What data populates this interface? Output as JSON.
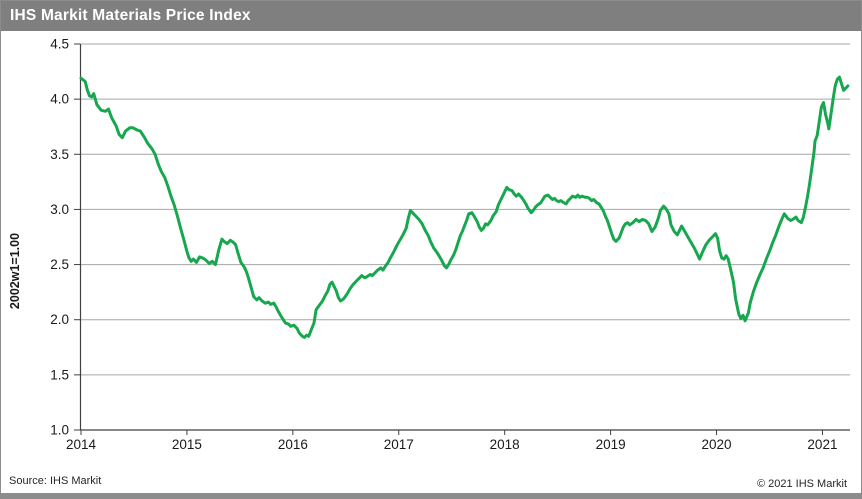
{
  "title_bar": {
    "title": "IHS Markit Materials Price Index"
  },
  "footer": {
    "source": "Source: IHS Markit",
    "copyright": "© 2021  IHS Markit"
  },
  "colors": {
    "title_bar_bg": "#7f7f7f",
    "title_text": "#ffffff",
    "line": "#17a74f",
    "gridline": "#a6a6a6",
    "axis": "#404040",
    "tick_label": "#1a1a1a",
    "border": "#8c8c8c",
    "background": "#ffffff"
  },
  "chart_data": {
    "type": "line",
    "title": "IHS Markit Materials Price Index",
    "xlabel": "",
    "ylabel": "2002w1=1.00",
    "x_ticks": [
      2014,
      2015,
      2016,
      2017,
      2018,
      2019,
      2020,
      2021
    ],
    "y_ticks": [
      1.0,
      1.5,
      2.0,
      2.5,
      3.0,
      3.5,
      4.0,
      4.5
    ],
    "xlim": [
      2014,
      2021.26
    ],
    "ylim": [
      1.0,
      4.5
    ],
    "grid": "horizontal",
    "legend": "none",
    "series": [
      {
        "name": "Materials Price Index",
        "color": "#17a74f",
        "points": [
          [
            2014.0,
            4.19
          ],
          [
            2014.04,
            4.16
          ],
          [
            2014.06,
            4.08
          ],
          [
            2014.08,
            4.03
          ],
          [
            2014.1,
            4.02
          ],
          [
            2014.12,
            4.05
          ],
          [
            2014.15,
            3.95
          ],
          [
            2014.19,
            3.9
          ],
          [
            2014.23,
            3.89
          ],
          [
            2014.26,
            3.91
          ],
          [
            2014.29,
            3.83
          ],
          [
            2014.33,
            3.76
          ],
          [
            2014.36,
            3.68
          ],
          [
            2014.39,
            3.65
          ],
          [
            2014.42,
            3.71
          ],
          [
            2014.46,
            3.74
          ],
          [
            2014.49,
            3.74
          ],
          [
            2014.53,
            3.72
          ],
          [
            2014.56,
            3.71
          ],
          [
            2014.6,
            3.65
          ],
          [
            2014.63,
            3.6
          ],
          [
            2014.67,
            3.55
          ],
          [
            2014.7,
            3.5
          ],
          [
            2014.73,
            3.41
          ],
          [
            2014.76,
            3.34
          ],
          [
            2014.79,
            3.29
          ],
          [
            2014.82,
            3.21
          ],
          [
            2014.85,
            3.12
          ],
          [
            2014.88,
            3.04
          ],
          [
            2014.91,
            2.94
          ],
          [
            2014.94,
            2.83
          ],
          [
            2014.97,
            2.73
          ],
          [
            2015.0,
            2.62
          ],
          [
            2015.02,
            2.56
          ],
          [
            2015.04,
            2.53
          ],
          [
            2015.06,
            2.55
          ],
          [
            2015.09,
            2.52
          ],
          [
            2015.12,
            2.57
          ],
          [
            2015.15,
            2.56
          ],
          [
            2015.18,
            2.54
          ],
          [
            2015.21,
            2.51
          ],
          [
            2015.24,
            2.53
          ],
          [
            2015.27,
            2.5
          ],
          [
            2015.3,
            2.63
          ],
          [
            2015.33,
            2.73
          ],
          [
            2015.35,
            2.71
          ],
          [
            2015.38,
            2.69
          ],
          [
            2015.41,
            2.72
          ],
          [
            2015.44,
            2.7
          ],
          [
            2015.46,
            2.68
          ],
          [
            2015.48,
            2.61
          ],
          [
            2015.51,
            2.52
          ],
          [
            2015.54,
            2.48
          ],
          [
            2015.56,
            2.44
          ],
          [
            2015.58,
            2.38
          ],
          [
            2015.61,
            2.28
          ],
          [
            2015.63,
            2.21
          ],
          [
            2015.66,
            2.18
          ],
          [
            2015.68,
            2.2
          ],
          [
            2015.71,
            2.17
          ],
          [
            2015.74,
            2.15
          ],
          [
            2015.77,
            2.16
          ],
          [
            2015.79,
            2.14
          ],
          [
            2015.82,
            2.15
          ],
          [
            2015.84,
            2.12
          ],
          [
            2015.86,
            2.08
          ],
          [
            2015.89,
            2.03
          ],
          [
            2015.91,
            2.0
          ],
          [
            2015.93,
            1.97
          ],
          [
            2015.96,
            1.96
          ],
          [
            2015.98,
            1.94
          ],
          [
            2016.01,
            1.95
          ],
          [
            2016.04,
            1.92
          ],
          [
            2016.06,
            1.88
          ],
          [
            2016.09,
            1.85
          ],
          [
            2016.11,
            1.84
          ],
          [
            2016.13,
            1.86
          ],
          [
            2016.15,
            1.85
          ],
          [
            2016.17,
            1.9
          ],
          [
            2016.2,
            1.97
          ],
          [
            2016.22,
            2.09
          ],
          [
            2016.25,
            2.13
          ],
          [
            2016.28,
            2.17
          ],
          [
            2016.3,
            2.21
          ],
          [
            2016.33,
            2.26
          ],
          [
            2016.35,
            2.32
          ],
          [
            2016.37,
            2.34
          ],
          [
            2016.39,
            2.3
          ],
          [
            2016.41,
            2.26
          ],
          [
            2016.43,
            2.2
          ],
          [
            2016.45,
            2.17
          ],
          [
            2016.48,
            2.19
          ],
          [
            2016.51,
            2.23
          ],
          [
            2016.54,
            2.28
          ],
          [
            2016.57,
            2.32
          ],
          [
            2016.6,
            2.35
          ],
          [
            2016.63,
            2.38
          ],
          [
            2016.65,
            2.4
          ],
          [
            2016.68,
            2.38
          ],
          [
            2016.7,
            2.39
          ],
          [
            2016.73,
            2.41
          ],
          [
            2016.75,
            2.4
          ],
          [
            2016.78,
            2.43
          ],
          [
            2016.8,
            2.45
          ],
          [
            2016.83,
            2.47
          ],
          [
            2016.85,
            2.45
          ],
          [
            2016.87,
            2.48
          ],
          [
            2016.9,
            2.52
          ],
          [
            2016.92,
            2.56
          ],
          [
            2016.95,
            2.61
          ],
          [
            2016.98,
            2.67
          ],
          [
            2017.01,
            2.72
          ],
          [
            2017.04,
            2.77
          ],
          [
            2017.07,
            2.83
          ],
          [
            2017.09,
            2.92
          ],
          [
            2017.11,
            2.99
          ],
          [
            2017.13,
            2.97
          ],
          [
            2017.16,
            2.94
          ],
          [
            2017.19,
            2.91
          ],
          [
            2017.22,
            2.87
          ],
          [
            2017.25,
            2.81
          ],
          [
            2017.28,
            2.76
          ],
          [
            2017.3,
            2.71
          ],
          [
            2017.33,
            2.65
          ],
          [
            2017.36,
            2.61
          ],
          [
            2017.38,
            2.58
          ],
          [
            2017.41,
            2.53
          ],
          [
            2017.43,
            2.49
          ],
          [
            2017.45,
            2.47
          ],
          [
            2017.47,
            2.5
          ],
          [
            2017.49,
            2.54
          ],
          [
            2017.52,
            2.59
          ],
          [
            2017.54,
            2.64
          ],
          [
            2017.56,
            2.7
          ],
          [
            2017.58,
            2.76
          ],
          [
            2017.6,
            2.8
          ],
          [
            2017.62,
            2.85
          ],
          [
            2017.64,
            2.9
          ],
          [
            2017.66,
            2.96
          ],
          [
            2017.69,
            2.97
          ],
          [
            2017.71,
            2.94
          ],
          [
            2017.74,
            2.89
          ],
          [
            2017.76,
            2.84
          ],
          [
            2017.78,
            2.81
          ],
          [
            2017.8,
            2.83
          ],
          [
            2017.82,
            2.87
          ],
          [
            2017.84,
            2.86
          ],
          [
            2017.87,
            2.9
          ],
          [
            2017.89,
            2.94
          ],
          [
            2017.92,
            2.98
          ],
          [
            2017.94,
            3.04
          ],
          [
            2017.97,
            3.1
          ],
          [
            2018.0,
            3.16
          ],
          [
            2018.02,
            3.2
          ],
          [
            2018.04,
            3.18
          ],
          [
            2018.07,
            3.17
          ],
          [
            2018.09,
            3.14
          ],
          [
            2018.11,
            3.12
          ],
          [
            2018.13,
            3.14
          ],
          [
            2018.16,
            3.11
          ],
          [
            2018.18,
            3.08
          ],
          [
            2018.2,
            3.05
          ],
          [
            2018.22,
            3.01
          ],
          [
            2018.25,
            2.97
          ],
          [
            2018.27,
            2.99
          ],
          [
            2018.29,
            3.02
          ],
          [
            2018.31,
            3.04
          ],
          [
            2018.34,
            3.06
          ],
          [
            2018.36,
            3.09
          ],
          [
            2018.38,
            3.12
          ],
          [
            2018.41,
            3.13
          ],
          [
            2018.43,
            3.11
          ],
          [
            2018.45,
            3.09
          ],
          [
            2018.47,
            3.1
          ],
          [
            2018.49,
            3.08
          ],
          [
            2018.51,
            3.07
          ],
          [
            2018.53,
            3.08
          ],
          [
            2018.56,
            3.06
          ],
          [
            2018.58,
            3.05
          ],
          [
            2018.6,
            3.08
          ],
          [
            2018.62,
            3.1
          ],
          [
            2018.64,
            3.12
          ],
          [
            2018.67,
            3.11
          ],
          [
            2018.69,
            3.13
          ],
          [
            2018.71,
            3.11
          ],
          [
            2018.73,
            3.12
          ],
          [
            2018.76,
            3.11
          ],
          [
            2018.78,
            3.11
          ],
          [
            2018.8,
            3.1
          ],
          [
            2018.82,
            3.08
          ],
          [
            2018.84,
            3.09
          ],
          [
            2018.87,
            3.06
          ],
          [
            2018.89,
            3.05
          ],
          [
            2018.91,
            3.02
          ],
          [
            2018.93,
            2.99
          ],
          [
            2018.95,
            2.94
          ],
          [
            2018.97,
            2.9
          ],
          [
            2018.99,
            2.84
          ],
          [
            2019.01,
            2.78
          ],
          [
            2019.03,
            2.73
          ],
          [
            2019.05,
            2.71
          ],
          [
            2019.08,
            2.74
          ],
          [
            2019.1,
            2.79
          ],
          [
            2019.12,
            2.84
          ],
          [
            2019.14,
            2.87
          ],
          [
            2019.16,
            2.88
          ],
          [
            2019.18,
            2.86
          ],
          [
            2019.21,
            2.88
          ],
          [
            2019.24,
            2.91
          ],
          [
            2019.27,
            2.89
          ],
          [
            2019.3,
            2.91
          ],
          [
            2019.33,
            2.9
          ],
          [
            2019.36,
            2.87
          ],
          [
            2019.39,
            2.8
          ],
          [
            2019.42,
            2.84
          ],
          [
            2019.45,
            2.92
          ],
          [
            2019.47,
            2.99
          ],
          [
            2019.5,
            3.03
          ],
          [
            2019.52,
            3.01
          ],
          [
            2019.55,
            2.96
          ],
          [
            2019.57,
            2.86
          ],
          [
            2019.6,
            2.8
          ],
          [
            2019.63,
            2.77
          ],
          [
            2019.65,
            2.81
          ],
          [
            2019.67,
            2.85
          ],
          [
            2019.7,
            2.8
          ],
          [
            2019.73,
            2.75
          ],
          [
            2019.76,
            2.7
          ],
          [
            2019.79,
            2.65
          ],
          [
            2019.82,
            2.59
          ],
          [
            2019.84,
            2.55
          ],
          [
            2019.87,
            2.62
          ],
          [
            2019.9,
            2.68
          ],
          [
            2019.93,
            2.72
          ],
          [
            2019.96,
            2.75
          ],
          [
            2019.99,
            2.78
          ],
          [
            2020.01,
            2.74
          ],
          [
            2020.03,
            2.62
          ],
          [
            2020.05,
            2.56
          ],
          [
            2020.07,
            2.55
          ],
          [
            2020.09,
            2.58
          ],
          [
            2020.11,
            2.55
          ],
          [
            2020.13,
            2.47
          ],
          [
            2020.16,
            2.34
          ],
          [
            2020.18,
            2.19
          ],
          [
            2020.21,
            2.05
          ],
          [
            2020.23,
            2.01
          ],
          [
            2020.25,
            2.04
          ],
          [
            2020.27,
            1.99
          ],
          [
            2020.3,
            2.06
          ],
          [
            2020.32,
            2.16
          ],
          [
            2020.35,
            2.26
          ],
          [
            2020.38,
            2.34
          ],
          [
            2020.41,
            2.41
          ],
          [
            2020.44,
            2.47
          ],
          [
            2020.47,
            2.55
          ],
          [
            2020.5,
            2.62
          ],
          [
            2020.53,
            2.7
          ],
          [
            2020.56,
            2.77
          ],
          [
            2020.59,
            2.85
          ],
          [
            2020.62,
            2.92
          ],
          [
            2020.64,
            2.96
          ],
          [
            2020.67,
            2.92
          ],
          [
            2020.7,
            2.9
          ],
          [
            2020.72,
            2.91
          ],
          [
            2020.75,
            2.93
          ],
          [
            2020.77,
            2.9
          ],
          [
            2020.8,
            2.88
          ],
          [
            2020.82,
            2.93
          ],
          [
            2020.84,
            3.02
          ],
          [
            2020.86,
            3.12
          ],
          [
            2020.88,
            3.24
          ],
          [
            2020.9,
            3.38
          ],
          [
            2020.92,
            3.52
          ],
          [
            2020.93,
            3.62
          ],
          [
            2020.95,
            3.67
          ],
          [
            2020.97,
            3.8
          ],
          [
            2020.99,
            3.93
          ],
          [
            2021.01,
            3.97
          ],
          [
            2021.03,
            3.86
          ],
          [
            2021.05,
            3.78
          ],
          [
            2021.06,
            3.73
          ],
          [
            2021.08,
            3.86
          ],
          [
            2021.1,
            4.0
          ],
          [
            2021.12,
            4.12
          ],
          [
            2021.14,
            4.18
          ],
          [
            2021.16,
            4.2
          ],
          [
            2021.18,
            4.14
          ],
          [
            2021.2,
            4.08
          ],
          [
            2021.22,
            4.1
          ],
          [
            2021.24,
            4.12
          ]
        ]
      }
    ]
  }
}
